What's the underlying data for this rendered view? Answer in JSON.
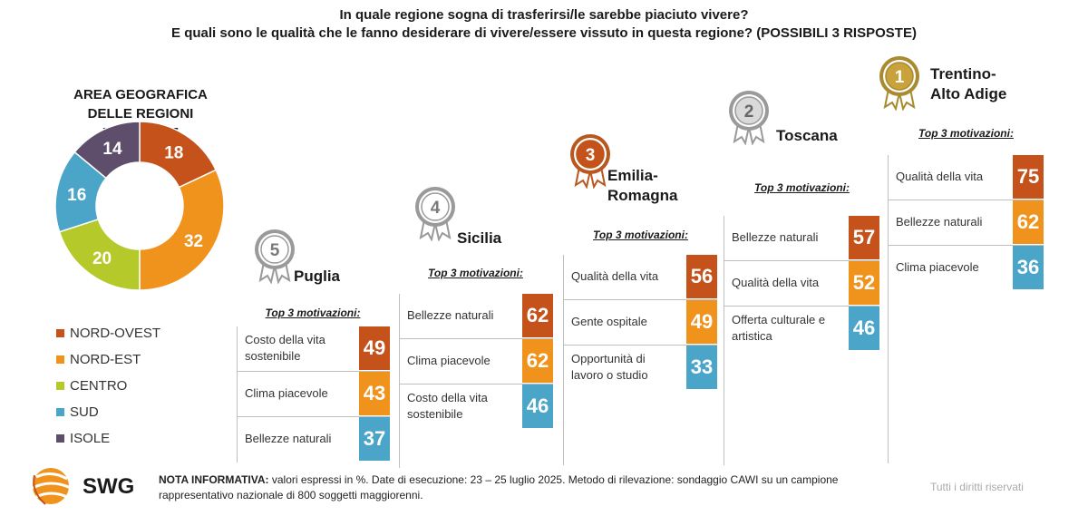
{
  "title_line1": "In quale regione sogna di trasferirsi/le sarebbe piaciuto vivere?",
  "title_line2": "E quali sono le qualità che le fanno desiderare di vivere/essere vissuto in questa regione? (POSSIBILI 3 RISPOSTE)",
  "colors": {
    "nord_ovest": "#c5521b",
    "nord_est": "#f0931c",
    "centro": "#b5c92b",
    "sud": "#4ba5c9",
    "isole": "#5e4d6b"
  },
  "chart_data": [
    {
      "type": "pie",
      "title_line1": "AREA GEOGRAFICA",
      "title_line2": "DELLE REGIONI PREFERITE",
      "labels": [
        "NORD-OVEST",
        "NORD-EST",
        "CENTRO",
        "SUD",
        "ISOLE"
      ],
      "values": [
        18,
        32,
        20,
        16,
        14
      ],
      "value_labels": [
        "18",
        "32",
        "20",
        "16",
        "14"
      ],
      "legend_position": "bottom-left"
    },
    {
      "type": "table",
      "subtitle": "Top 3 motivazioni:",
      "regions": [
        {
          "rank": "5",
          "name_line1": "Puglia",
          "name_line2": "",
          "motivations": [
            {
              "label": "Costo della vita sostenibile",
              "value": "49"
            },
            {
              "label": "Clima piacevole",
              "value": "43"
            },
            {
              "label": "Bellezze naturali",
              "value": "37"
            }
          ]
        },
        {
          "rank": "4",
          "name_line1": "Sicilia",
          "name_line2": "",
          "motivations": [
            {
              "label": "Bellezze naturali",
              "value": "62"
            },
            {
              "label": "Clima piacevole",
              "value": "62"
            },
            {
              "label": "Costo della vita sostenibile",
              "value": "46"
            }
          ]
        },
        {
          "rank": "3",
          "name_line1": "Emilia-",
          "name_line2": "Romagna",
          "motivations": [
            {
              "label": "Qualità della vita",
              "value": "56"
            },
            {
              "label": "Gente ospitale",
              "value": "49"
            },
            {
              "label": "Opportunità di lavoro o studio",
              "value": "33"
            }
          ]
        },
        {
          "rank": "2",
          "name_line1": "Toscana",
          "name_line2": "",
          "motivations": [
            {
              "label": "Bellezze naturali",
              "value": "57"
            },
            {
              "label": "Qualità della vita",
              "value": "52"
            },
            {
              "label": "Offerta culturale e artistica",
              "value": "46"
            }
          ]
        },
        {
          "rank": "1",
          "name_line1": "Trentino-",
          "name_line2": "Alto Adige",
          "motivations": [
            {
              "label": "Qualità della vita",
              "value": "75"
            },
            {
              "label": "Bellezze naturali",
              "value": "62"
            },
            {
              "label": "Clima piacevole",
              "value": "36"
            }
          ]
        }
      ]
    }
  ],
  "note_label": "NOTA INFORMATIVA:",
  "note_text": " valori espressi in %. Date di esecuzione: 23 – 25 luglio 2025. Metodo di rilevazione: sondaggio CAWI su un campione rappresentativo nazionale di 800 soggetti maggiorenni.",
  "brand": "SWG",
  "rights": "Tutti i diritti riservati"
}
